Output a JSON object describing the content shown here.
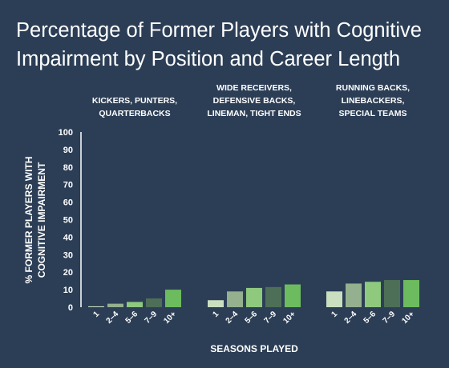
{
  "title": {
    "line1": "Percentage of Former Players with Cognitive",
    "line2": "Impairment by Position and Career Length"
  },
  "colors": {
    "background": "#2c3e56",
    "text": "#ffffff",
    "bars": [
      "#c9dfc0",
      "#94b08e",
      "#8ec97e",
      "#4e6f57",
      "#6dbb5f"
    ]
  },
  "chart_data": {
    "type": "bar",
    "title": "Percentage of Former Players with Cognitive Impairment by Position and Career Length",
    "xlabel": "SEASONS PLAYED",
    "ylabel": "% FORMER PLAYERS WITH COGNITIVE IMPAIRMENT",
    "ylabel_lines": [
      "% FORMER PLAYERS WITH",
      "COGNITIVE IMPAIRMENT"
    ],
    "ylim": [
      0,
      100
    ],
    "yticks": [
      0,
      10,
      20,
      30,
      40,
      50,
      60,
      70,
      80,
      90,
      100
    ],
    "grid": false,
    "legend": "none",
    "categories": [
      "1",
      "2–4",
      "5–6",
      "7–9",
      "10+"
    ],
    "groups": [
      {
        "label_lines": [
          "KICKERS, PUNTERS,",
          "QUARTERBACKS"
        ],
        "values": [
          0.5,
          2,
          3,
          5,
          10
        ]
      },
      {
        "label_lines": [
          "WIDE RECEIVERS,",
          "DEFENSIVE BACKS,",
          "LINEMAN, TIGHT ENDS"
        ],
        "values": [
          4,
          9,
          11,
          11.5,
          13
        ]
      },
      {
        "label_lines": [
          "RUNNING BACKS,",
          "LINEBACKERS,",
          "SPECIAL TEAMS"
        ],
        "values": [
          9,
          13.5,
          14.5,
          15.5,
          15.5
        ]
      }
    ]
  }
}
